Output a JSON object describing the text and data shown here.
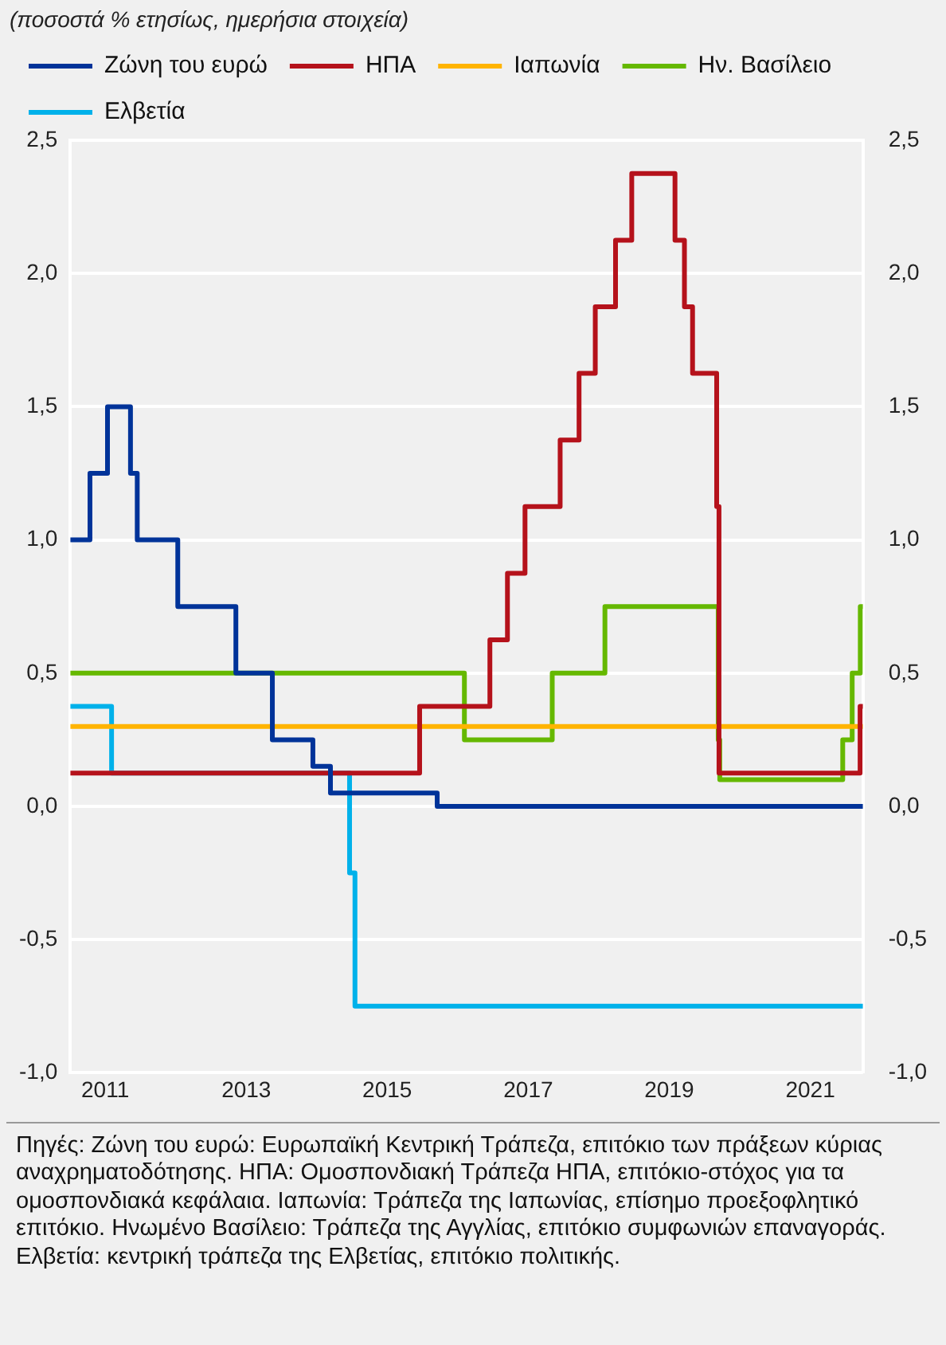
{
  "chart_data": {
    "type": "step",
    "title": "(ποσοστά % ετησίως, ημερήσια στοιχεία)",
    "series": [
      {
        "name": "Ζώνη του ευρώ",
        "color": "#003399",
        "x": [
          "2011-01-01",
          "2011-04-13",
          "2011-07-13",
          "2011-11-09",
          "2011-12-14",
          "2012-07-11",
          "2013-05-08",
          "2013-11-13",
          "2014-06-11",
          "2014-09-10",
          "2016-03-16",
          "2022-03-31"
        ],
        "values": [
          1.0,
          1.25,
          1.5,
          1.25,
          1.0,
          0.75,
          0.5,
          0.25,
          0.15,
          0.05,
          0.0,
          0.0
        ]
      },
      {
        "name": "ΗΠΑ",
        "color": "#b5121b",
        "x": [
          "2011-01-01",
          "2015-12-16",
          "2016-12-14",
          "2017-03-15",
          "2017-06-14",
          "2017-12-13",
          "2018-03-21",
          "2018-06-13",
          "2018-09-26",
          "2018-12-19",
          "2019-07-31",
          "2019-09-18",
          "2019-10-30",
          "2020-03-03",
          "2020-03-15",
          "2022-03-16",
          "2022-03-31"
        ],
        "values": [
          0.125,
          0.375,
          0.625,
          0.875,
          1.125,
          1.375,
          1.625,
          1.875,
          2.125,
          2.375,
          2.125,
          1.875,
          1.625,
          1.125,
          0.125,
          0.375,
          0.375
        ]
      },
      {
        "name": "Ιαπωνία",
        "color": "#ffb400",
        "x": [
          "2011-01-01",
          "2022-03-31"
        ],
        "values": [
          0.3,
          0.3
        ]
      },
      {
        "name": "Ην. Βασίλειο",
        "color": "#65b800",
        "x": [
          "2011-01-01",
          "2016-08-04",
          "2017-11-02",
          "2018-08-02",
          "2020-03-11",
          "2020-03-19",
          "2021-12-16",
          "2022-02-03",
          "2022-03-17",
          "2022-03-31"
        ],
        "values": [
          0.5,
          0.25,
          0.5,
          0.75,
          0.25,
          0.1,
          0.25,
          0.5,
          0.75,
          0.75
        ]
      },
      {
        "name": "Ελβετία",
        "color": "#00b1ea",
        "x": [
          "2011-01-01",
          "2011-08-03",
          "2014-12-18",
          "2015-01-15",
          "2022-03-31"
        ],
        "values": [
          0.375,
          0.125,
          -0.25,
          -0.75,
          -0.75
        ]
      }
    ],
    "xlim": [
      "2011-01-01",
      "2022-03-31"
    ],
    "xticks": [
      {
        "value": "2011-07-01",
        "label": "2011"
      },
      {
        "value": "2013-07-01",
        "label": "2013"
      },
      {
        "value": "2015-07-01",
        "label": "2015"
      },
      {
        "value": "2017-07-01",
        "label": "2017"
      },
      {
        "value": "2019-07-01",
        "label": "2019"
      },
      {
        "value": "2021-07-01",
        "label": "2021"
      }
    ],
    "ylim": [
      -1.0,
      2.5
    ],
    "yticks": [
      {
        "value": -1.0,
        "label": "-1,0"
      },
      {
        "value": -0.5,
        "label": "-0,5"
      },
      {
        "value": 0,
        "label": "0,0"
      },
      {
        "value": 0.5,
        "label": "0,5"
      },
      {
        "value": 1.0,
        "label": "1,0"
      },
      {
        "value": 1.5,
        "label": "1,5"
      },
      {
        "value": 2.0,
        "label": "2,0"
      },
      {
        "value": 2.5,
        "label": "2,5"
      }
    ],
    "y2lim": [
      -1.0,
      2.5
    ],
    "y2ticks": [
      {
        "value": -1.0,
        "label": "-1,0"
      },
      {
        "value": -0.5,
        "label": "-0,5"
      },
      {
        "value": 0,
        "label": "0,0"
      },
      {
        "value": 0.5,
        "label": "0,5"
      },
      {
        "value": 1.0,
        "label": "1,0"
      },
      {
        "value": 1.5,
        "label": "1,5"
      },
      {
        "value": 2.0,
        "label": "2,0"
      },
      {
        "value": 2.5,
        "label": "2,5"
      }
    ],
    "grid": "y",
    "legend": "top",
    "marker": "none",
    "line_style": "solid",
    "annotations": [
      "Πηγές: Ζώνη του ευρώ: Ευρωπαϊκή Κεντρική Τράπεζα, επιτόκιο των πράξεων κύριας αναχρηματοδότησης. ΗΠΑ: Ομοσπονδιακή Τράπεζα ΗΠΑ, επιτόκιο-στόχος για τα ομοσπονδιακά κεφάλαια. Ιαπωνία: Τράπεζα της Ιαπωνίας, επίσημο προεξοφλητικό επιτόκιο. Ηνωμένο Βασίλειο: Τράπεζα της Αγγλίας, επιτόκιο συμφωνιών επαναγοράς. Ελβετία: κεντρική τράπεζα της Ελβετίας, επιτόκιο πολιτικής."
    ]
  }
}
